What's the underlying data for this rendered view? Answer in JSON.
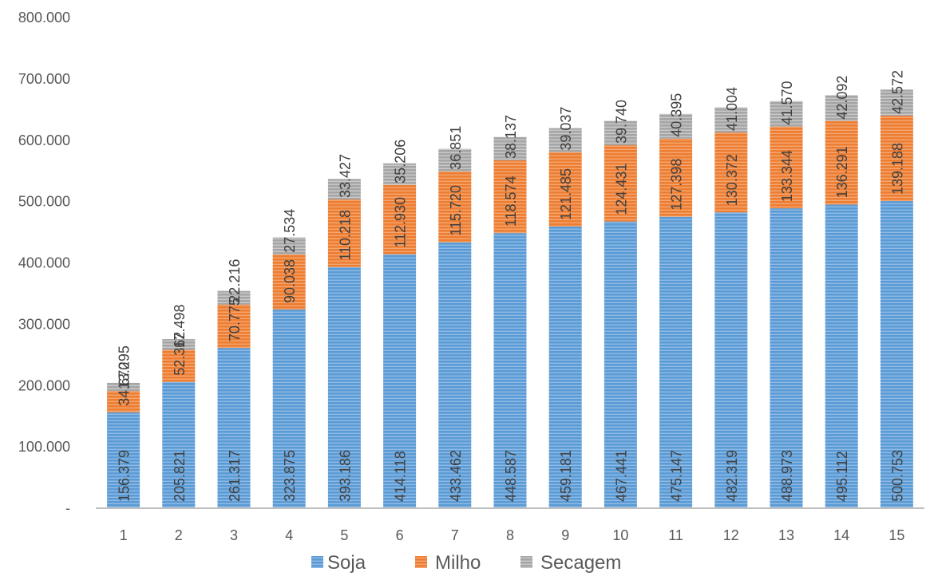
{
  "chart_data": {
    "type": "bar",
    "stacked": true,
    "categories": [
      "1",
      "2",
      "3",
      "4",
      "5",
      "6",
      "7",
      "8",
      "9",
      "10",
      "11",
      "12",
      "13",
      "14",
      "15"
    ],
    "series": [
      {
        "name": "Soja",
        "color": "#5B9BD5",
        "values": [
          156379,
          205821,
          261317,
          323875,
          393186,
          414118,
          433462,
          448587,
          459181,
          467441,
          475147,
          482319,
          488973,
          495112,
          500753
        ],
        "labels": [
          "156.379",
          "205.821",
          "261.317",
          "323.875",
          "393.186",
          "414.118",
          "433.462",
          "448.587",
          "459.181",
          "467.441",
          "475.147",
          "482.319",
          "488.973",
          "495.112",
          "500.753"
        ]
      },
      {
        "name": "Milho",
        "color": "#ED7D31",
        "values": [
          34670,
          52362,
          70775,
          90038,
          110218,
          112930,
          115720,
          118574,
          121485,
          124431,
          127398,
          130372,
          133344,
          136291,
          139188
        ],
        "labels": [
          "34.670",
          "52.362",
          "70.775",
          "90.038",
          "110.218",
          "112.930",
          "115.720",
          "118.574",
          "121.485",
          "124.431",
          "127.398",
          "130.372",
          "133.344",
          "136.291",
          "139.188"
        ]
      },
      {
        "name": "Secagem",
        "color": "#A5A5A5",
        "values": [
          13295,
          17498,
          22216,
          27534,
          33427,
          35206,
          36851,
          38137,
          39037,
          39740,
          40395,
          41004,
          41570,
          42092,
          42572
        ],
        "labels": [
          "13.295",
          "17.498",
          "22.216",
          "27.534",
          "33.427",
          "35.206",
          "36.851",
          "38.137",
          "39.037",
          "39.740",
          "40.395",
          "41.004",
          "41.570",
          "42.092",
          "42.572"
        ]
      }
    ],
    "ylim": [
      0,
      800000
    ],
    "yticks": [
      0,
      100000,
      200000,
      300000,
      400000,
      500000,
      600000,
      700000,
      800000
    ],
    "ytick_labels": [
      "-",
      "100.000",
      "200.000",
      "300.000",
      "400.000",
      "500.000",
      "600.000",
      "700.000",
      "800.000"
    ],
    "grid": false,
    "legend_position": "bottom",
    "title": "",
    "xlabel": "",
    "ylabel": ""
  }
}
